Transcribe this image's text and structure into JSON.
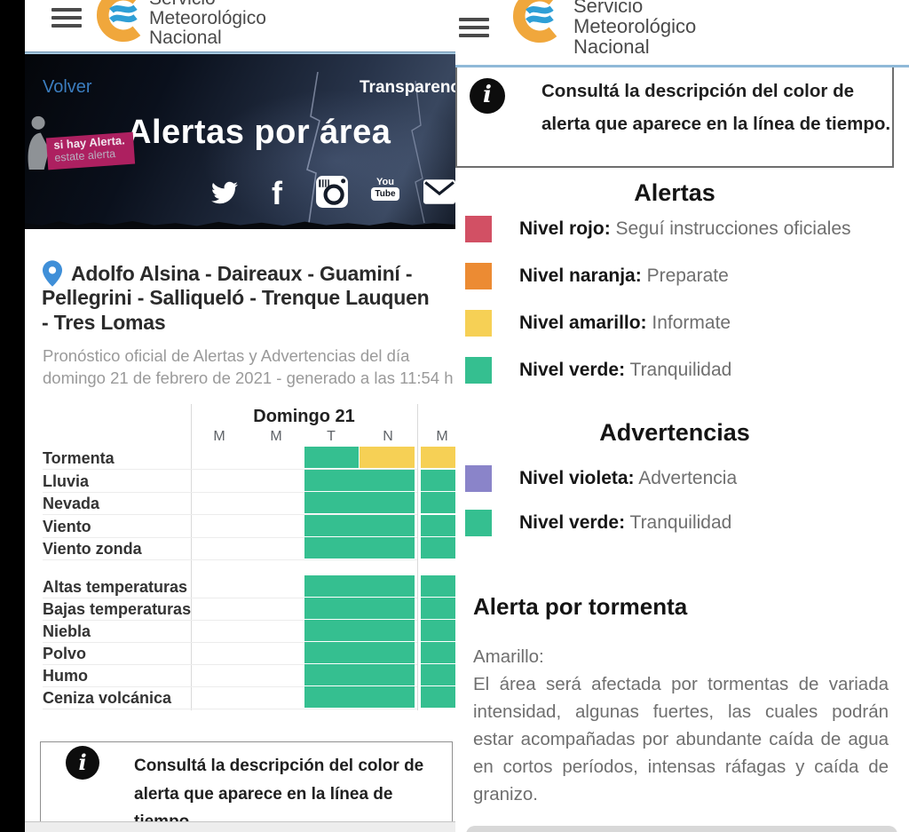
{
  "brand": {
    "line1": "Servicio",
    "line2": "Meteorológico",
    "line3": "Nacional"
  },
  "left": {
    "nav": {
      "back": "Volver",
      "transparency": "Transparencia"
    },
    "hero": {
      "title": "Alertas por área",
      "badge_line1": "si hay Alerta.",
      "badge_line2": "estate alerta",
      "social": [
        "twitter",
        "facebook",
        "instagram",
        "youtube",
        "mail"
      ]
    },
    "location_lines": [
      "Adolfo Alsina - Daireaux - Guaminí -",
      "Pellegrini - Salliqueló - Trenque Lauquen",
      "- Tres Lomas"
    ],
    "meta_lines": [
      "Pronóstico oficial de Alertas y Advertencias del día",
      "domingo 21 de febrero de 2021 - generado a las 11:54 h"
    ],
    "timeline": {
      "day_header": "Domingo 21",
      "columns": [
        "M",
        "M",
        "T",
        "N"
      ],
      "next_day_column": "M",
      "groups": [
        {
          "rows": [
            {
              "label": "Tormenta",
              "t": "yellow_split",
              "n": "yellow",
              "next": "yellow"
            },
            {
              "label": "Lluvia",
              "t": "green",
              "n": "green",
              "next": "green"
            },
            {
              "label": "Nevada",
              "t": "green",
              "n": "green",
              "next": "green"
            },
            {
              "label": "Viento",
              "t": "green",
              "n": "green",
              "next": "green"
            },
            {
              "label": "Viento zonda",
              "t": "green",
              "n": "green",
              "next": "green"
            }
          ]
        },
        {
          "rows": [
            {
              "label": "Altas temperaturas",
              "t": "green",
              "n": "green",
              "next": "green"
            },
            {
              "label": "Bajas temperaturas",
              "t": "green",
              "n": "green",
              "next": "green"
            },
            {
              "label": "Niebla",
              "t": "green",
              "n": "green",
              "next": "green"
            },
            {
              "label": "Polvo",
              "t": "green",
              "n": "green",
              "next": "green"
            },
            {
              "label": "Humo",
              "t": "green",
              "n": "green",
              "next": "green"
            },
            {
              "label": "Ceniza volcánica",
              "t": "green",
              "n": "green",
              "next": "green"
            }
          ]
        }
      ]
    },
    "info_box": {
      "text": "Consultá la descripción del color de alerta que aparece en la línea de tiempo."
    }
  },
  "right": {
    "info_box": {
      "text": "Consultá la descripción del color de alerta que aparece en la línea de tiempo."
    },
    "alertas": {
      "title": "Alertas",
      "items": [
        {
          "color": "#d25064",
          "label": "Nivel rojo:",
          "desc": "Seguí instrucciones oficiales"
        },
        {
          "color": "#ec8b33",
          "label": "Nivel naranja:",
          "desc": "Preparate"
        },
        {
          "color": "#f6d055",
          "label": "Nivel amarillo:",
          "desc": "Informate"
        },
        {
          "color": "#35bf90",
          "label": "Nivel verde:",
          "desc": "Tranquilidad"
        }
      ]
    },
    "advertencias": {
      "title": "Advertencias",
      "items": [
        {
          "color": "#8a84c9",
          "label": "Nivel violeta:",
          "desc": "Advertencia"
        },
        {
          "color": "#35bf90",
          "label": "Nivel verde:",
          "desc": "Tranquilidad"
        }
      ]
    },
    "storm": {
      "title": "Alerta por tormenta",
      "level": "Amarillo:",
      "body": "El área será afectada por tormentas de variada intensidad, algunas fuertes, las cuales podrán estar acompañadas por abundante caída de agua en cortos períodos, intensas ráfagas y caída de granizo."
    }
  },
  "colors": {
    "cell_green": "#35bf90",
    "cell_yellow": "#f6d055",
    "badge_magenta": "#ad2060",
    "link_blue": "#3b7dbf"
  }
}
